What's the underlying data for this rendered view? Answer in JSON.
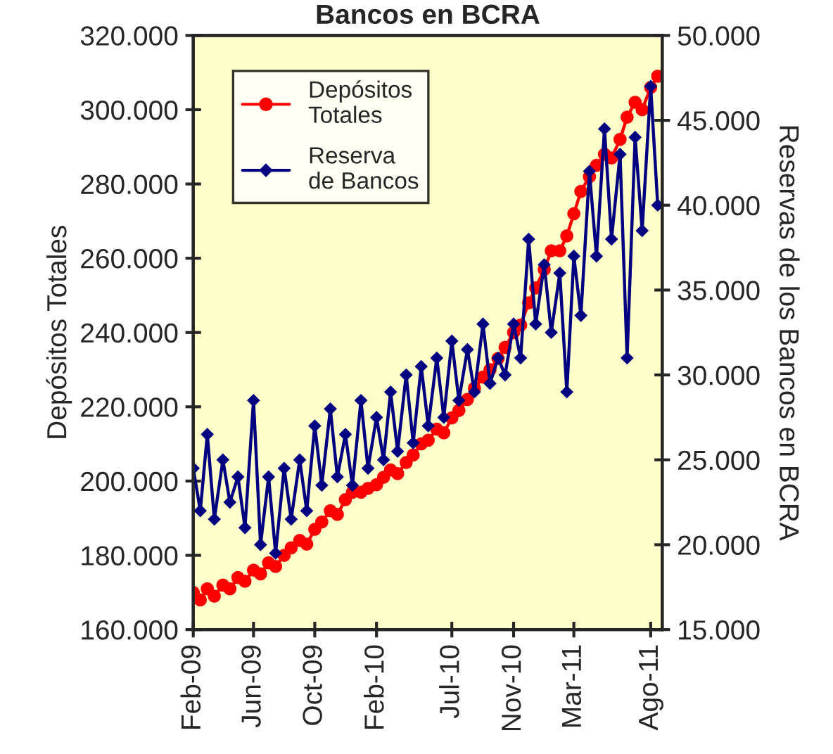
{
  "chart_data": {
    "type": "line",
    "title": "Bancos en BCRA",
    "ylabel": "Depósitos Totales",
    "y2label": "Reservas de los Bancos en BCRA",
    "x": [
      "2009-02-01",
      "2009-02-15",
      "2009-03-01",
      "2009-03-15",
      "2009-04-01",
      "2009-04-15",
      "2009-05-01",
      "2009-05-15",
      "2009-06-01",
      "2009-06-15",
      "2009-07-01",
      "2009-07-15",
      "2009-08-01",
      "2009-08-15",
      "2009-09-01",
      "2009-09-15",
      "2009-10-01",
      "2009-10-15",
      "2009-11-01",
      "2009-11-15",
      "2009-12-01",
      "2009-12-15",
      "2010-01-01",
      "2010-01-15",
      "2010-02-01",
      "2010-02-15",
      "2010-03-01",
      "2010-03-15",
      "2010-04-01",
      "2010-04-15",
      "2010-05-01",
      "2010-05-15",
      "2010-06-01",
      "2010-06-15",
      "2010-07-01",
      "2010-07-15",
      "2010-08-01",
      "2010-08-15",
      "2010-09-01",
      "2010-09-15",
      "2010-10-01",
      "2010-10-15",
      "2010-11-01",
      "2010-11-15",
      "2010-12-01",
      "2010-12-15",
      "2011-01-01",
      "2011-01-15",
      "2011-02-01",
      "2011-02-15",
      "2011-03-01",
      "2011-03-15",
      "2011-04-01",
      "2011-04-15",
      "2011-05-01",
      "2011-05-15",
      "2011-06-01",
      "2011-06-15",
      "2011-07-01",
      "2011-07-15",
      "2011-08-01",
      "2011-08-15"
    ],
    "series": [
      {
        "name": "Depósitos Totales",
        "color": "#ff0000",
        "marker": "circle",
        "values": [
          170000,
          168000,
          171000,
          169000,
          172000,
          171000,
          174000,
          173000,
          176000,
          175000,
          178000,
          177000,
          180000,
          182000,
          184000,
          183000,
          187000,
          189000,
          192000,
          191000,
          195000,
          197000,
          197000,
          198000,
          199000,
          201000,
          203000,
          202000,
          205000,
          207000,
          210000,
          211000,
          214000,
          213000,
          217000,
          219000,
          222000,
          225000,
          228000,
          230000,
          233000,
          236000,
          240000,
          242000,
          248000,
          252000,
          257000,
          262000,
          262000,
          266000,
          272000,
          278000,
          282000,
          285000,
          288000,
          287000,
          292000,
          298000,
          302000,
          300000,
          306000,
          309000
        ]
      },
      {
        "name": "Reserva de Bancos",
        "color": "#000080",
        "marker": "diamond",
        "axis": "y2",
        "values": [
          24500,
          22000,
          26500,
          21500,
          25000,
          22500,
          24000,
          21000,
          28500,
          20000,
          24000,
          19500,
          24500,
          21500,
          25000,
          22000,
          27000,
          23500,
          28000,
          24000,
          26500,
          23500,
          28500,
          24500,
          27500,
          25000,
          29000,
          25500,
          30000,
          26000,
          30500,
          27000,
          31000,
          27500,
          32000,
          28500,
          31500,
          29000,
          33000,
          29500,
          31000,
          30000,
          33000,
          31000,
          38000,
          33000,
          36500,
          32500,
          36000,
          29000,
          37000,
          33500,
          42000,
          37000,
          44500,
          38000,
          43000,
          31000,
          44000,
          38500,
          47000,
          40000
        ]
      }
    ],
    "xlim": [
      "2009-02-01",
      "2011-08-24"
    ],
    "xticks": [
      {
        "value": "2009-02-01",
        "label": "Feb-09"
      },
      {
        "value": "2009-06-01",
        "label": "Jun-09"
      },
      {
        "value": "2009-10-01",
        "label": "Oct-09"
      },
      {
        "value": "2010-02-01",
        "label": "Feb-10"
      },
      {
        "value": "2010-07-01",
        "label": "Jul-10"
      },
      {
        "value": "2010-11-01",
        "label": "Nov-10"
      },
      {
        "value": "2011-03-01",
        "label": "Mar-11"
      },
      {
        "value": "2011-08-01",
        "label": "Ago-11"
      }
    ],
    "ylim": [
      160000,
      320000
    ],
    "yticks": [
      {
        "value": 160000,
        "label": "160.000"
      },
      {
        "value": 180000,
        "label": "180.000"
      },
      {
        "value": 200000,
        "label": "200.000"
      },
      {
        "value": 220000,
        "label": "220.000"
      },
      {
        "value": 240000,
        "label": "240.000"
      },
      {
        "value": 260000,
        "label": "260.000"
      },
      {
        "value": 280000,
        "label": "280.000"
      },
      {
        "value": 300000,
        "label": "300.000"
      },
      {
        "value": 320000,
        "label": "320.000"
      }
    ],
    "y2lim": [
      15000,
      50000
    ],
    "y2ticks": [
      {
        "value": 15000,
        "label": "15.000"
      },
      {
        "value": 20000,
        "label": "20.000"
      },
      {
        "value": 25000,
        "label": "25.000"
      },
      {
        "value": 30000,
        "label": "30.000"
      },
      {
        "value": 35000,
        "label": "35.000"
      },
      {
        "value": 40000,
        "label": "40.000"
      },
      {
        "value": 45000,
        "label": "45.000"
      },
      {
        "value": 50000,
        "label": "50.000"
      }
    ],
    "grid": false,
    "legend": "top left",
    "line_style": "solid"
  }
}
